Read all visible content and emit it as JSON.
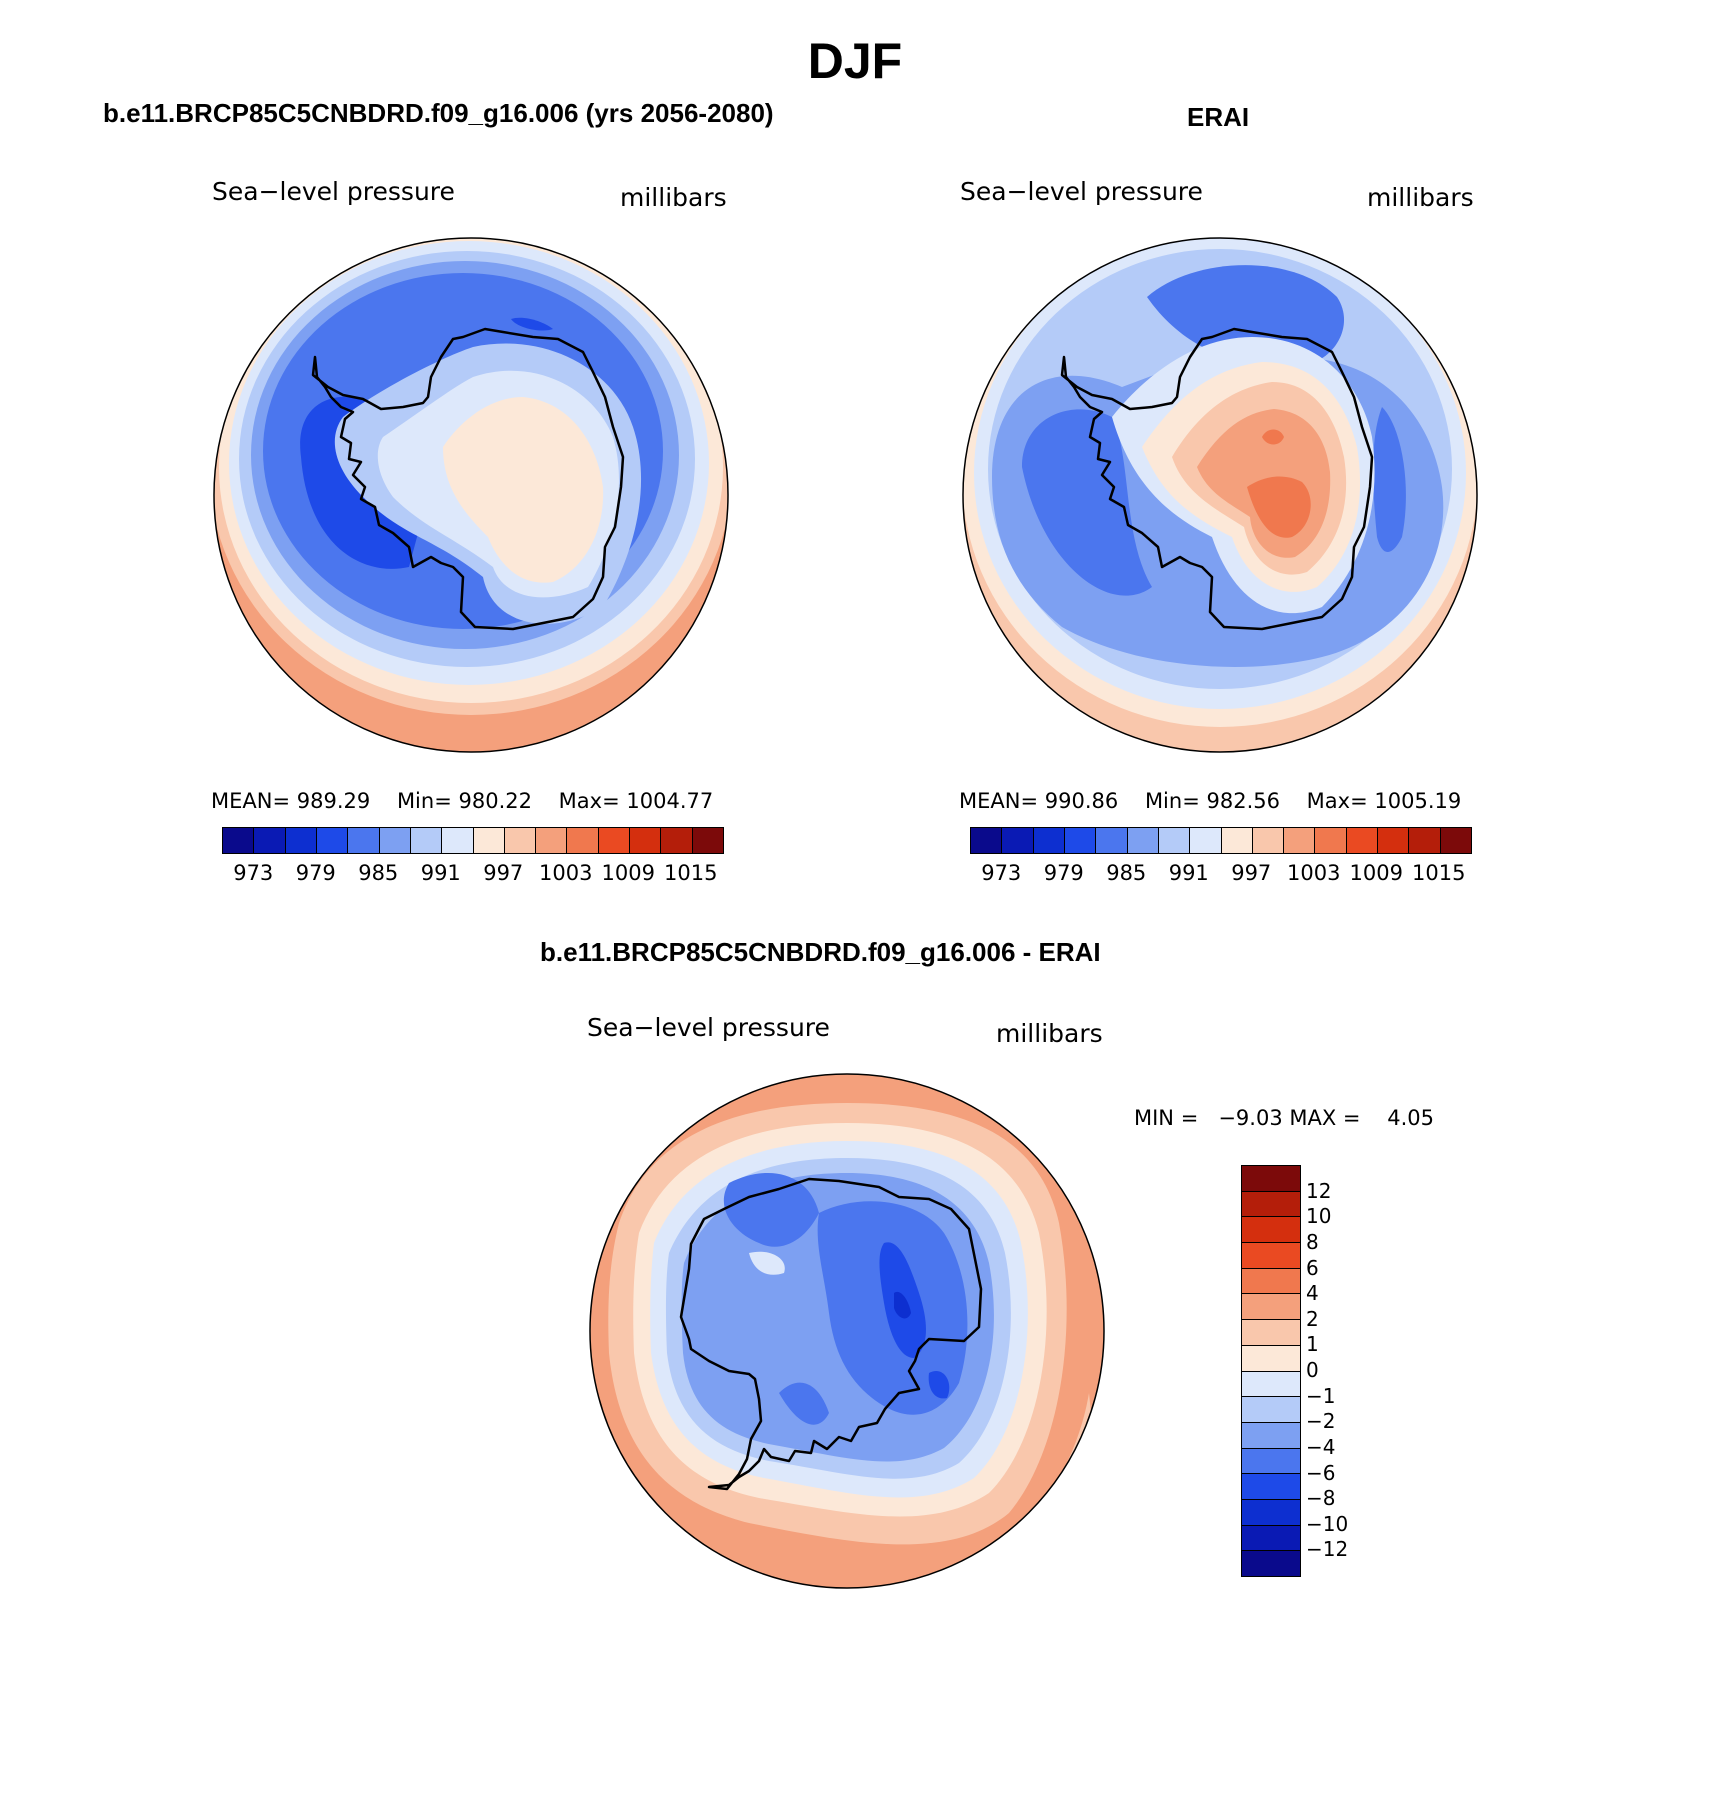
{
  "title": "DJF",
  "panels": {
    "model": {
      "title": "b.e11.BRCP85C5CNBDRD.f09_g16.006 (yrs 2056-2080)",
      "left_label": "Sea−level pressure",
      "right_label": "millibars",
      "stats": {
        "mean_label": "MEAN=",
        "mean": "989.29",
        "min_label": "Min=",
        "min": "980.22",
        "max_label": "Max=",
        "max": "1004.77"
      }
    },
    "obs": {
      "title": "ERAI",
      "left_label": "Sea−level pressure",
      "right_label": "millibars",
      "stats": {
        "mean_label": "MEAN=",
        "mean": "990.86",
        "min_label": "Min=",
        "min": "982.56",
        "max_label": "Max=",
        "max": "1005.19"
      }
    },
    "diff": {
      "title": "b.e11.BRCP85C5CNBDRD.f09_g16.006 - ERAI",
      "left_label": "Sea−level pressure",
      "right_label": "millibars",
      "minmax": {
        "min_label": "MIN =",
        "min": "−9.03",
        "max_label": "MAX =",
        "max": "4.05"
      }
    }
  },
  "colorbar_abs": {
    "colors": [
      "#0a0a8c",
      "#0a1ab4",
      "#0d2fd0",
      "#1e4ae8",
      "#4b76ee",
      "#7da0f2",
      "#b4cbf8",
      "#dde8fb",
      "#fce8d8",
      "#f9c7ac",
      "#f4a07c",
      "#f0784e",
      "#ea4a22",
      "#d42f0e",
      "#b41e0a",
      "#7c0a0a"
    ],
    "labels": [
      "973",
      "979",
      "985",
      "991",
      "997",
      "1003",
      "1009",
      "1015"
    ]
  },
  "colorbar_diff": {
    "colors": [
      "#0a0a8c",
      "#0a1ab4",
      "#0d2fd0",
      "#1e4ae8",
      "#4b76ee",
      "#7da0f2",
      "#b4cbf8",
      "#dde8fb",
      "#fce8d8",
      "#f9c7ac",
      "#f4a07c",
      "#f0784e",
      "#ea4a22",
      "#d42f0e",
      "#b41e0a",
      "#7c0a0a"
    ],
    "labels": [
      "12",
      "10",
      "8",
      "6",
      "4",
      "2",
      "1",
      "0",
      "−1",
      "−2",
      "−4",
      "−6",
      "−8",
      "−10",
      "−12"
    ]
  }
}
